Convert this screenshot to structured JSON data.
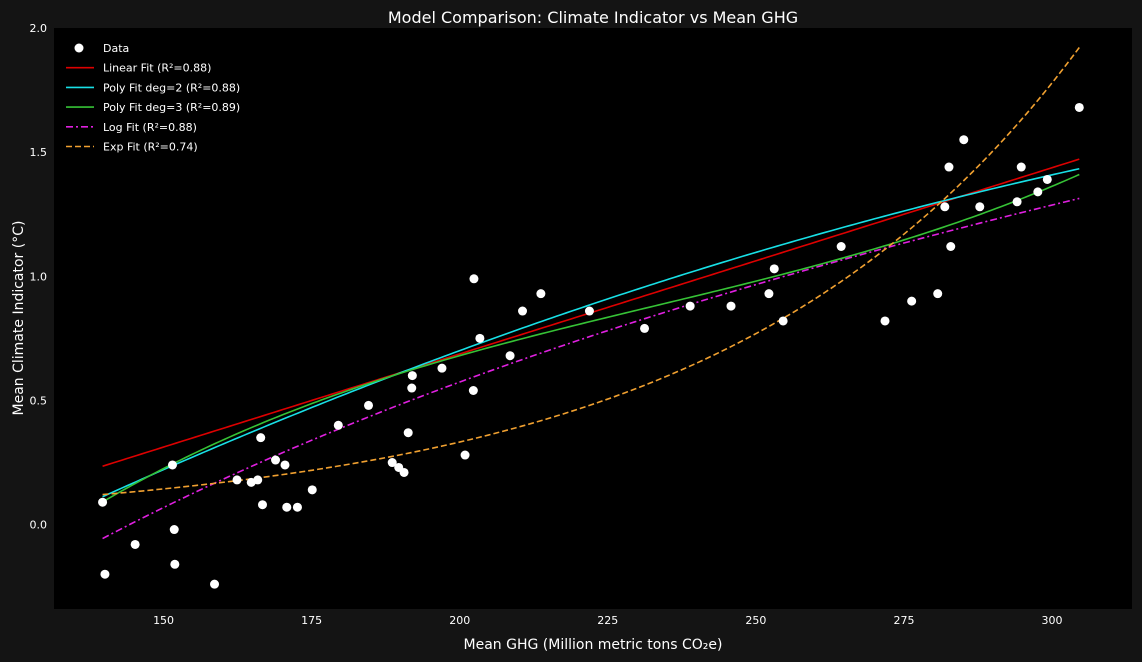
{
  "chart_data": {
    "type": "scatter",
    "title": "Model Comparison: Climate Indicator vs Mean GHG",
    "xlabel": "Mean GHG (Million metric tons CO₂e)",
    "ylabel": "Mean Climate Indicator (°C)",
    "xlim": [
      131.5,
      313.5
    ],
    "ylim": [
      -0.34,
      2.0
    ],
    "xticks": [
      150,
      175,
      200,
      225,
      250,
      275,
      300
    ],
    "yticks": [
      0.0,
      0.5,
      1.0,
      1.5,
      2.0
    ],
    "xtick_labels": [
      "150",
      "175",
      "200",
      "225",
      "250",
      "275",
      "300"
    ],
    "ytick_labels": [
      "0.0",
      "0.5",
      "1.0",
      "1.5",
      "2.0"
    ],
    "grid": false,
    "legend_position": "top-left",
    "points": [
      [
        139.7,
        0.09
      ],
      [
        140.1,
        -0.2
      ],
      [
        145.2,
        -0.08
      ],
      [
        151.5,
        0.24
      ],
      [
        151.8,
        -0.02
      ],
      [
        151.9,
        -0.16
      ],
      [
        158.6,
        -0.24
      ],
      [
        162.4,
        0.18
      ],
      [
        164.8,
        0.17
      ],
      [
        165.9,
        0.18
      ],
      [
        166.4,
        0.35
      ],
      [
        166.7,
        0.08
      ],
      [
        168.9,
        0.26
      ],
      [
        170.5,
        0.24
      ],
      [
        170.8,
        0.07
      ],
      [
        172.6,
        0.07
      ],
      [
        175.1,
        0.14
      ],
      [
        179.5,
        0.4
      ],
      [
        184.6,
        0.48
      ],
      [
        188.6,
        0.25
      ],
      [
        189.7,
        0.23
      ],
      [
        190.6,
        0.21
      ],
      [
        191.3,
        0.37
      ],
      [
        191.9,
        0.55
      ],
      [
        192.0,
        0.6
      ],
      [
        197.0,
        0.63
      ],
      [
        200.9,
        0.28
      ],
      [
        202.3,
        0.54
      ],
      [
        202.4,
        0.99
      ],
      [
        203.4,
        0.75
      ],
      [
        208.5,
        0.68
      ],
      [
        210.6,
        0.86
      ],
      [
        213.7,
        0.93
      ],
      [
        221.9,
        0.86
      ],
      [
        231.2,
        0.79
      ],
      [
        238.9,
        0.88
      ],
      [
        245.8,
        0.88
      ],
      [
        252.2,
        0.93
      ],
      [
        253.1,
        1.03
      ],
      [
        254.6,
        0.82
      ],
      [
        264.4,
        1.12
      ],
      [
        271.8,
        0.82
      ],
      [
        276.3,
        0.9
      ],
      [
        280.7,
        0.93
      ],
      [
        281.9,
        1.28
      ],
      [
        282.6,
        1.44
      ],
      [
        282.9,
        1.12
      ],
      [
        285.1,
        1.55
      ],
      [
        287.8,
        1.28
      ],
      [
        294.1,
        1.3
      ],
      [
        294.8,
        1.44
      ],
      [
        297.6,
        1.34
      ],
      [
        299.2,
        1.39
      ],
      [
        304.6,
        1.68
      ]
    ],
    "series": [
      {
        "name": "Data",
        "kind": "scatter",
        "color": "#ffffff"
      },
      {
        "name": "Linear Fit (R²=0.88)",
        "kind": "line",
        "color": "#dd0000",
        "dash": "solid",
        "model": "linear",
        "coef": [
          -0.8127,
          0.0075
        ]
      },
      {
        "name": "Poly Fit deg=2 (R²=0.88)",
        "kind": "line",
        "color": "#18e0e6",
        "dash": "solid",
        "model": "poly",
        "coef": [
          -1.7174,
          0.01543,
          -1.67e-05
        ]
      },
      {
        "name": "Poly Fit deg=3 (R²=0.89)",
        "kind": "line",
        "color": "#36c236",
        "dash": "solid",
        "model": "poly",
        "coef": [
          -4.4276,
          0.05692,
          -0.0002199,
          3.15e-07
        ]
      },
      {
        "name": "Log Fit (R²=0.88)",
        "kind": "line",
        "color": "#e020e0",
        "dash": "dashdot",
        "model": "log",
        "coef": [
          -8.7375,
          1.7575
        ]
      },
      {
        "name": "Exp Fit (R²=0.74)",
        "kind": "line",
        "color": "#f0a030",
        "dash": "dashed",
        "model": "exp",
        "coef": [
          0.01162,
          0.01677
        ]
      }
    ],
    "fit_range": [
      139.7,
      304.6
    ]
  }
}
